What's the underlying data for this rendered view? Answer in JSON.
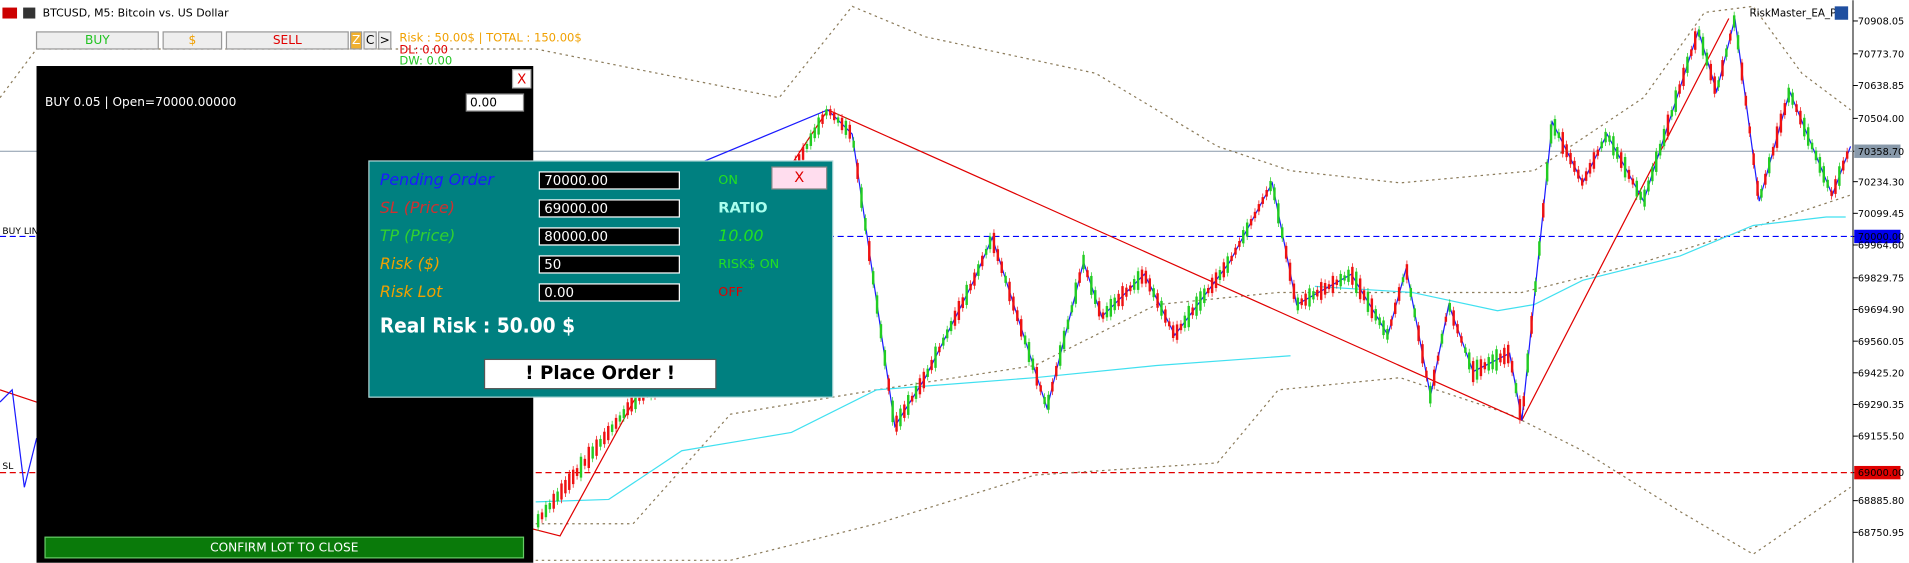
{
  "header": {
    "symbol": "BTCUSD, M5:  Bitcoin vs. US Dollar",
    "ea_name": "RiskMaster_EA_Pro"
  },
  "toolbar": {
    "buy": "BUY",
    "dollar": "$",
    "sell": "SELL",
    "z": "Z",
    "c": "C",
    "next": ">"
  },
  "risk_info": {
    "risk": "Risk : 50.00$ | TOTAL : 150.00$",
    "dl": "DL: 0.00",
    "dw": "DW: 0.00"
  },
  "position_panel": {
    "close": "X",
    "position": "BUY 0.05 | Open=70000.00000",
    "lot_input": "0.00",
    "confirm": "CONFIRM LOT TO CLOSE"
  },
  "chart_labels": {
    "buy_line": "BUY LIN",
    "sl": "SL"
  },
  "order_dialog": {
    "fields": [
      {
        "label": "Pending Order",
        "input": "70000.00",
        "status": "ON"
      },
      {
        "label": "SL (Price)",
        "input": "69000.00",
        "status": "RATIO"
      },
      {
        "label": "TP (Price)",
        "input": "80000.00",
        "status": "10.00"
      },
      {
        "label": "Risk ($)",
        "input": "50",
        "status": "RISK$ ON"
      },
      {
        "label": "Risk Lot",
        "input": "0.00",
        "status": "OFF"
      }
    ],
    "close": "X",
    "real_risk": "Real Risk : 50.00 $",
    "place_order": "! Place Order !"
  },
  "price_axis": [
    "70908.05",
    "70773.70",
    "70638.85",
    "70504.00",
    "70358.70",
    "70234.30",
    "70099.45",
    "70000.00",
    "69964.60",
    "69829.75",
    "69694.90",
    "69560.05",
    "69425.20",
    "69290.35",
    "69155.50",
    "69000.00",
    "68885.80",
    "68750.95"
  ]
}
